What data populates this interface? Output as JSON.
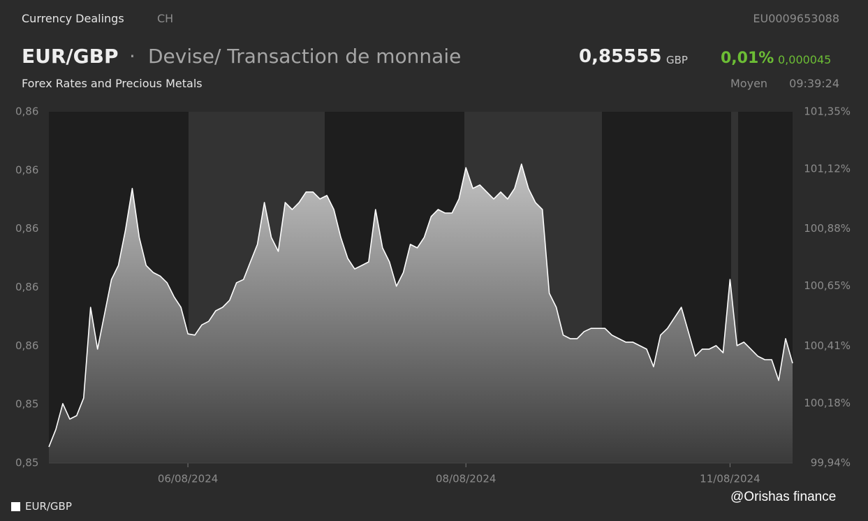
{
  "header": {
    "section": "Currency Dealings",
    "country": "CH",
    "isin": "EU0009653088",
    "symbol": "EUR/GBP",
    "separator": "·",
    "instrument": "Devise/ Transaction de monnaie",
    "price": "0,85555",
    "currency": "GBP",
    "change_pct": "0,01%",
    "change_abs": "0,000045",
    "market": "Forex Rates and Precious Metals",
    "price_kind": "Moyen",
    "time": "09:39:24"
  },
  "chart_data": {
    "type": "area",
    "categories": [
      null,
      null,
      null,
      null,
      null,
      null,
      null,
      null,
      null,
      null,
      null,
      null,
      null,
      null,
      null,
      null,
      null,
      null,
      null,
      null,
      "06/08/2024",
      null,
      null,
      null,
      null,
      null,
      null,
      null,
      null,
      null,
      null,
      null,
      null,
      null,
      null,
      null,
      null,
      null,
      null,
      null,
      null,
      null,
      null,
      null,
      null,
      null,
      null,
      null,
      null,
      null,
      null,
      null,
      null,
      null,
      null,
      null,
      null,
      null,
      null,
      null,
      "08/08/2024",
      null,
      null,
      null,
      null,
      null,
      null,
      null,
      null,
      null,
      null,
      null,
      null,
      null,
      null,
      null,
      null,
      null,
      null,
      null,
      null,
      null,
      null,
      null,
      null,
      null,
      null,
      null,
      null,
      null,
      null,
      null,
      null,
      null,
      null,
      null,
      null,
      null,
      "11/08/2024",
      null,
      null,
      null,
      null,
      null,
      null,
      null,
      null,
      null
    ],
    "series": [
      {
        "name": "EUR/GBP",
        "color": "#ffffff",
        "values": [
          0.85265,
          0.85325,
          0.85413,
          0.8536,
          0.85372,
          0.85432,
          0.85742,
          0.85599,
          0.85718,
          0.85837,
          0.85885,
          0.86004,
          0.86148,
          0.85981,
          0.85885,
          0.85861,
          0.85849,
          0.85826,
          0.85778,
          0.85742,
          0.85651,
          0.85647,
          0.85682,
          0.85694,
          0.8573,
          0.85742,
          0.85766,
          0.85826,
          0.85837,
          0.85897,
          0.85957,
          0.861,
          0.85981,
          0.85933,
          0.861,
          0.86076,
          0.861,
          0.86136,
          0.86136,
          0.86112,
          0.86124,
          0.86076,
          0.85981,
          0.85909,
          0.85873,
          0.85885,
          0.85897,
          0.86076,
          0.85945,
          0.85897,
          0.85814,
          0.85861,
          0.85957,
          0.85945,
          0.85981,
          0.86052,
          0.86076,
          0.86064,
          0.86064,
          0.86112,
          0.86219,
          0.86148,
          0.8616,
          0.86136,
          0.86112,
          0.86136,
          0.86112,
          0.86148,
          0.86231,
          0.86148,
          0.861,
          0.86076,
          0.8579,
          0.85742,
          0.85647,
          0.85635,
          0.85635,
          0.85659,
          0.8567,
          0.8567,
          0.8567,
          0.85647,
          0.85635,
          0.85623,
          0.85623,
          0.85611,
          0.85599,
          0.85539,
          0.85647,
          0.8567,
          0.85706,
          0.85742,
          0.85659,
          0.85575,
          0.85599,
          0.85599,
          0.85611,
          0.85587,
          0.85837,
          0.85611,
          0.85623,
          0.85599,
          0.85575,
          0.85563,
          0.85563,
          0.85492,
          0.85635,
          0.85551
        ]
      }
    ],
    "ylim": [
      0.8521,
      0.8641
    ],
    "yticks": [
      {
        "value": 0.8521,
        "label": "0,85"
      },
      {
        "value": 0.8541,
        "label": "0,85"
      },
      {
        "value": 0.8561,
        "label": "0,86"
      },
      {
        "value": 0.8581,
        "label": "0,86"
      },
      {
        "value": 0.8601,
        "label": "0,86"
      },
      {
        "value": 0.8621,
        "label": "0,86"
      },
      {
        "value": 0.8641,
        "label": "0,86"
      }
    ],
    "y2lim": [
      99.94,
      101.35
    ],
    "y2ticks": [
      {
        "value": 99.94,
        "label": "99,94%"
      },
      {
        "value": 100.18,
        "label": "100,18%"
      },
      {
        "value": 100.41,
        "label": "100,41%"
      },
      {
        "value": 100.65,
        "label": "100,65%"
      },
      {
        "value": 100.88,
        "label": "100,88%"
      },
      {
        "value": 101.12,
        "label": "101,12%"
      },
      {
        "value": 101.35,
        "label": "101,35%"
      }
    ],
    "grid": false
  },
  "watermark": "@Orishas finance"
}
